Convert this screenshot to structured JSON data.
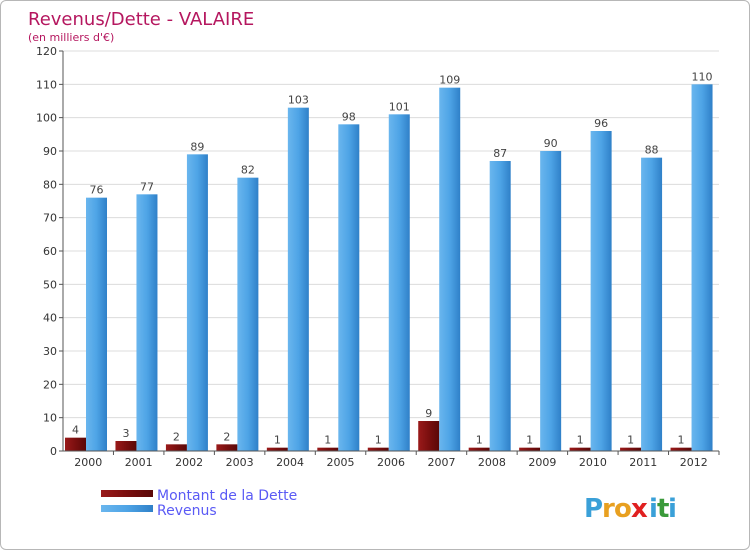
{
  "chart_data": {
    "type": "bar",
    "title": "Revenus/Dette - VALAIRE",
    "subtitle": "(en milliers d'€)",
    "categories": [
      "2000",
      "2001",
      "2002",
      "2003",
      "2004",
      "2005",
      "2006",
      "2007",
      "2008",
      "2009",
      "2010",
      "2011",
      "2012"
    ],
    "series": [
      {
        "name": "Montant de la Dette",
        "color": "#7a0f0f",
        "values": [
          4,
          3,
          2,
          2,
          1,
          1,
          1,
          9,
          1,
          1,
          1,
          1,
          1
        ]
      },
      {
        "name": "Revenus",
        "color": "#4a9fe0",
        "values": [
          76,
          77,
          89,
          82,
          103,
          98,
          101,
          109,
          87,
          90,
          96,
          88,
          110
        ]
      }
    ],
    "ylim": [
      0,
      120
    ],
    "yticks": [
      0,
      10,
      20,
      30,
      40,
      50,
      60,
      70,
      80,
      90,
      100,
      110,
      120
    ],
    "grid": true,
    "legend": "bottom-left"
  },
  "logo": {
    "letters": [
      "P",
      "r",
      "o",
      "x",
      "i",
      "t",
      "i"
    ],
    "colors": [
      "#3aa0d8",
      "#e8a020",
      "#e8a020",
      "#e02020",
      "#3aa0d8",
      "#3a9a3a",
      "#3aa0d8"
    ]
  }
}
